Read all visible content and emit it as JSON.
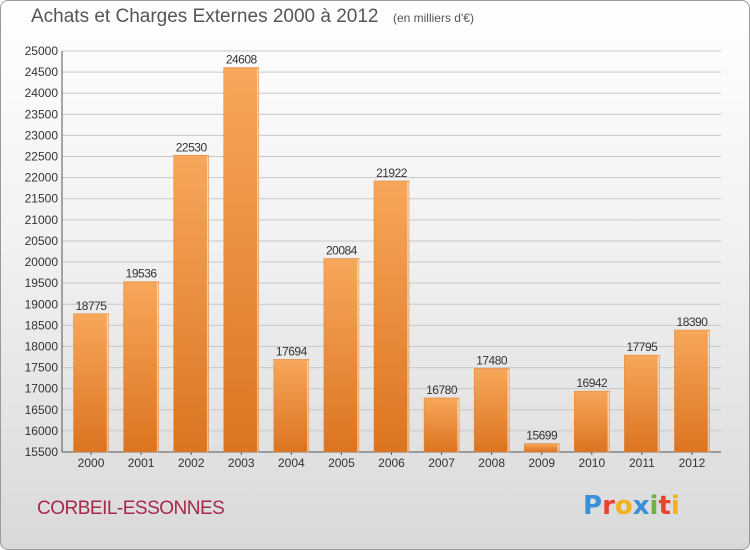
{
  "header": {
    "title": "Achats et Charges Externes 2000 à 2012",
    "unit": "(en milliers d'€)"
  },
  "footer": {
    "city": "CORBEIL-ESSONNES",
    "logo_text": "Proxiti",
    "logo_colors": [
      "#3a8fd6",
      "#e8432e",
      "#f2b21b",
      "#3a8fd6",
      "#6cb33f",
      "#e8432e",
      "#f2b21b"
    ]
  },
  "chart_data": {
    "type": "bar",
    "title": "Achats et Charges Externes 2000 à 2012",
    "categories": [
      "2000",
      "2001",
      "2002",
      "2003",
      "2004",
      "2005",
      "2006",
      "2007",
      "2008",
      "2009",
      "2010",
      "2011",
      "2012"
    ],
    "values": [
      18775,
      19536,
      22530,
      24608,
      17694,
      20084,
      21922,
      16780,
      17480,
      15699,
      16942,
      17795,
      18390
    ],
    "ylim": [
      15500,
      25000
    ],
    "yticks": [
      15500,
      16000,
      16500,
      17000,
      17500,
      18000,
      18500,
      19000,
      19500,
      20000,
      20500,
      21000,
      21500,
      22000,
      22500,
      23000,
      23500,
      24000,
      24500,
      25000
    ],
    "grid": true,
    "bar_color": "#f0963a"
  }
}
